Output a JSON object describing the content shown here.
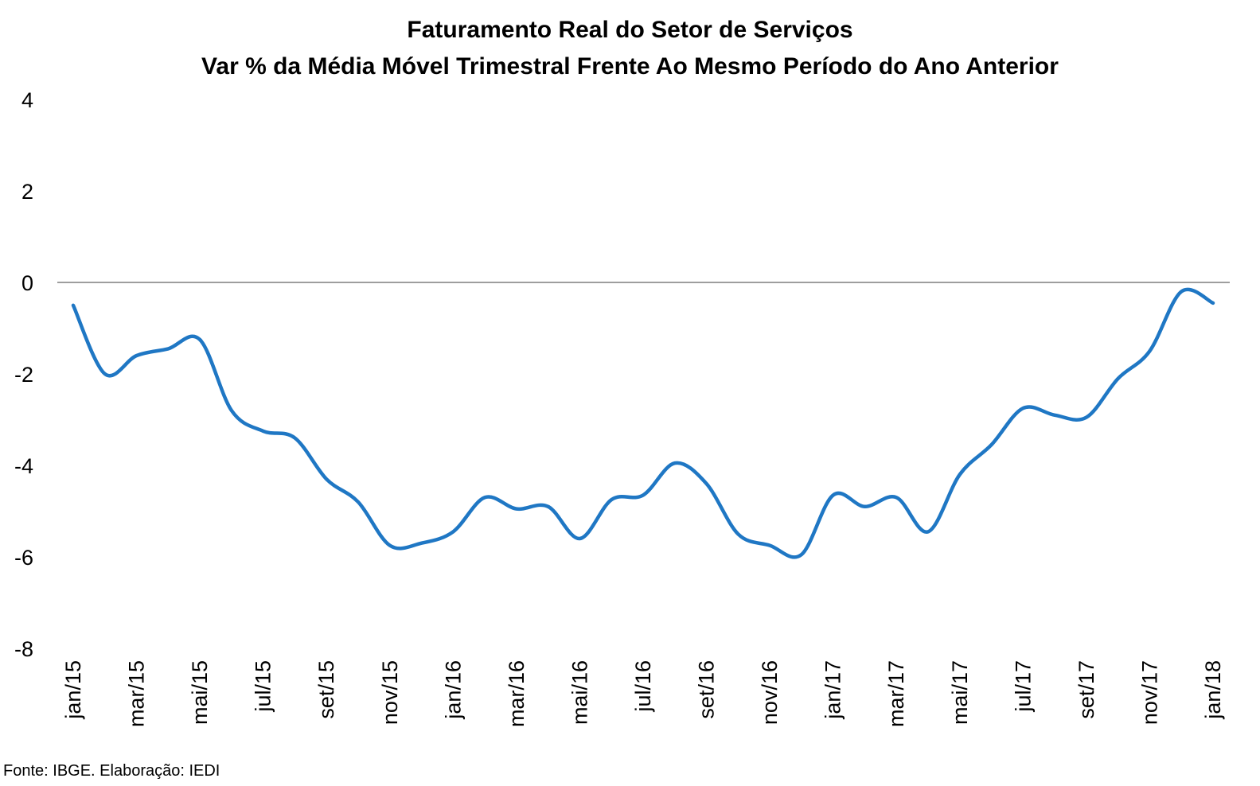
{
  "chart_data": {
    "type": "line",
    "title": "Faturamento Real do Setor de Serviços",
    "subtitle": "Var % da Média Móvel Trimestral Frente Ao Mesmo Período do Ano Anterior",
    "xlabel": "",
    "ylabel": "",
    "ylim": [
      -8,
      4
    ],
    "yticks": [
      "4",
      "2",
      "0",
      "-2",
      "-4",
      "-6",
      "-8"
    ],
    "ytick_values": [
      4,
      2,
      0,
      -2,
      -4,
      -6,
      -8
    ],
    "xtick_labels": [
      "jan/15",
      "mar/15",
      "mai/15",
      "jul/15",
      "set/15",
      "nov/15",
      "jan/16",
      "mar/16",
      "mai/16",
      "jul/16",
      "set/16",
      "nov/16",
      "jan/17",
      "mar/17",
      "mai/17",
      "jul/17",
      "set/17",
      "nov/17",
      "jan/18"
    ],
    "grid": false,
    "zero_line": true,
    "legend": "none",
    "series": [
      {
        "color": "#1F77C4",
        "x": [
          "jan/15",
          "fev/15",
          "mar/15",
          "abr/15",
          "mai/15",
          "jun/15",
          "jul/15",
          "ago/15",
          "set/15",
          "out/15",
          "nov/15",
          "dez/15",
          "jan/16",
          "fev/16",
          "mar/16",
          "abr/16",
          "mai/16",
          "jun/16",
          "jul/16",
          "ago/16",
          "set/16",
          "out/16",
          "nov/16",
          "dez/16",
          "jan/17",
          "fev/17",
          "mar/17",
          "abr/17",
          "mai/17",
          "jun/17",
          "jul/17",
          "ago/17",
          "set/17",
          "out/17",
          "nov/17",
          "dez/17",
          "jan/18"
        ],
        "values": [
          -0.5,
          -2.0,
          -1.6,
          -1.45,
          -1.25,
          -2.8,
          -3.25,
          -3.4,
          -4.3,
          -4.8,
          -5.75,
          -5.7,
          -5.45,
          -4.7,
          -4.95,
          -4.9,
          -5.6,
          -4.75,
          -4.65,
          -3.95,
          -4.4,
          -5.5,
          -5.75,
          -5.95,
          -4.65,
          -4.9,
          -4.7,
          -5.45,
          -4.2,
          -3.55,
          -2.75,
          -2.9,
          -2.95,
          -2.1,
          -1.5,
          -0.2,
          -0.45
        ]
      }
    ]
  },
  "source": "Fonte: IBGE. Elaboração: IEDI"
}
